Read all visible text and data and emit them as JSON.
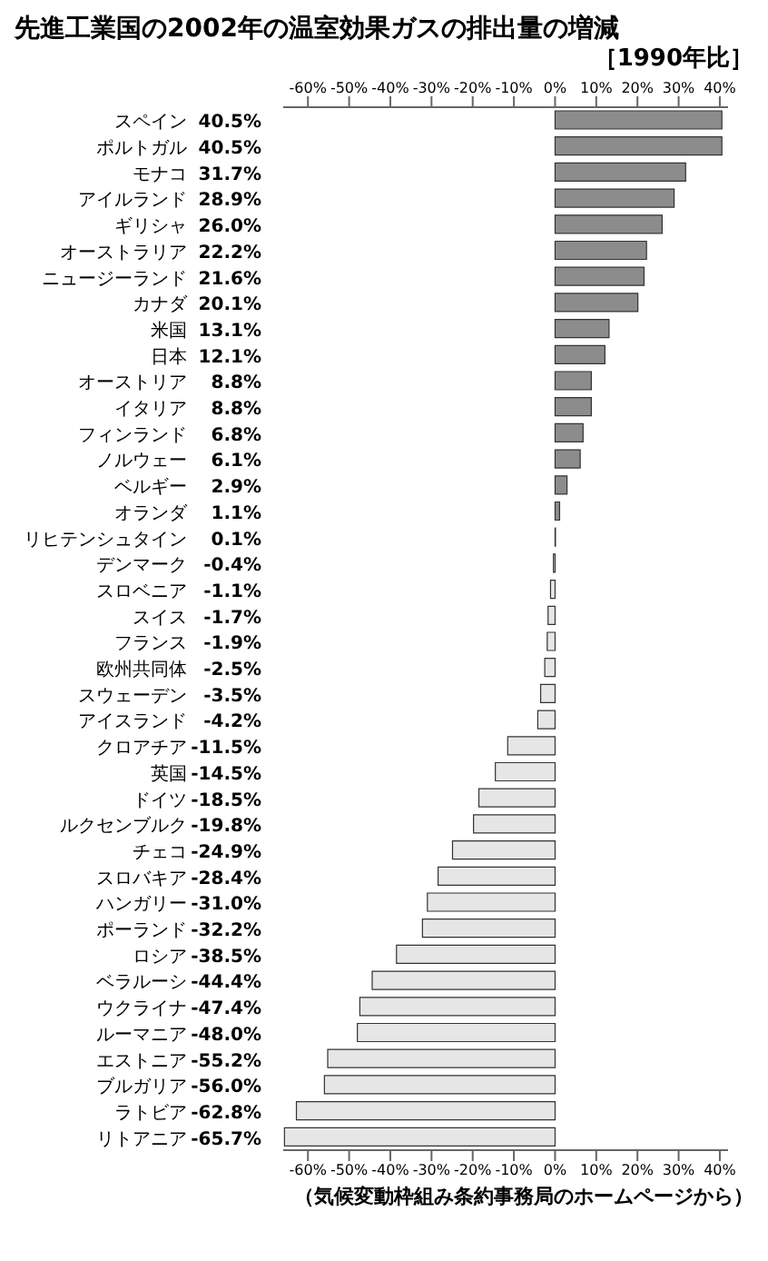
{
  "chart_data": {
    "type": "bar",
    "orientation": "horizontal",
    "title": "先進工業国の2002年の温室効果ガスの排出量の増減",
    "subtitle": "［1990年比］",
    "categories": [
      "スペイン",
      "ポルトガル",
      "モナコ",
      "アイルランド",
      "ギリシャ",
      "オーストラリア",
      "ニュージーランド",
      "カナダ",
      "米国",
      "日本",
      "オーストリア",
      "イタリア",
      "フィンランド",
      "ノルウェー",
      "ベルギー",
      "オランダ",
      "リヒテンシュタイン",
      "デンマーク",
      "スロベニア",
      "スイス",
      "フランス",
      "欧州共同体",
      "スウェーデン",
      "アイスランド",
      "クロアチア",
      "英国",
      "ドイツ",
      "ルクセンブルク",
      "チェコ",
      "スロバキア",
      "ハンガリー",
      "ポーランド",
      "ロシア",
      "ベラルーシ",
      "ウクライナ",
      "ルーマニア",
      "エストニア",
      "ブルガリア",
      "ラトビア",
      "リトアニア"
    ],
    "values": [
      40.5,
      40.5,
      31.7,
      28.9,
      26.0,
      22.2,
      21.6,
      20.1,
      13.1,
      12.1,
      8.8,
      8.8,
      6.8,
      6.1,
      2.9,
      1.1,
      0.1,
      -0.4,
      -1.1,
      -1.7,
      -1.9,
      -2.5,
      -3.5,
      -4.2,
      -11.5,
      -14.5,
      -18.5,
      -19.8,
      -24.9,
      -28.4,
      -31.0,
      -32.2,
      -38.5,
      -44.4,
      -47.4,
      -48.0,
      -55.2,
      -56.0,
      -62.8,
      -65.7
    ],
    "value_labels": [
      "40.5%",
      "40.5%",
      "31.7%",
      "28.9%",
      "26.0%",
      "22.2%",
      "21.6%",
      "20.1%",
      "13.1%",
      "12.1%",
      "8.8%",
      "8.8%",
      "6.8%",
      "6.1%",
      "2.9%",
      "1.1%",
      "0.1%",
      "-0.4%",
      "-1.1%",
      "-1.7%",
      "-1.9%",
      "-2.5%",
      "-3.5%",
      "-4.2%",
      "-11.5%",
      "-14.5%",
      "-18.5%",
      "-19.8%",
      "-24.9%",
      "-28.4%",
      "-31.0%",
      "-32.2%",
      "-38.5%",
      "-44.4%",
      "-47.4%",
      "-48.0%",
      "-55.2%",
      "-56.0%",
      "-62.8%",
      "-65.7%"
    ],
    "colors": [
      "#8c8c8c",
      "#8c8c8c",
      "#8c8c8c",
      "#8c8c8c",
      "#8c8c8c",
      "#8c8c8c",
      "#8c8c8c",
      "#8c8c8c",
      "#8c8c8c",
      "#8c8c8c",
      "#8c8c8c",
      "#8c8c8c",
      "#8c8c8c",
      "#8c8c8c",
      "#8c8c8c",
      "#8c8c8c",
      "#8c8c8c",
      "#e6e6e6",
      "#e6e6e6",
      "#e6e6e6",
      "#e6e6e6",
      "#e6e6e6",
      "#e6e6e6",
      "#e6e6e6",
      "#e6e6e6",
      "#e6e6e6",
      "#e6e6e6",
      "#e6e6e6",
      "#e6e6e6",
      "#e6e6e6",
      "#e6e6e6",
      "#e6e6e6",
      "#e6e6e6",
      "#e6e6e6",
      "#e6e6e6",
      "#e6e6e6",
      "#e6e6e6",
      "#e6e6e6",
      "#e6e6e6",
      "#e6e6e6"
    ],
    "xlim": [
      -66,
      42
    ],
    "xticks": [
      {
        "value": -60,
        "label": "-60%"
      },
      {
        "value": -50,
        "label": "-50%"
      },
      {
        "value": -40,
        "label": "-40%"
      },
      {
        "value": -30,
        "label": "-30%"
      },
      {
        "value": -20,
        "label": "-20%"
      },
      {
        "value": -10,
        "label": "-10%"
      },
      {
        "value": 0,
        "label": "0%"
      },
      {
        "value": 10,
        "label": "10%"
      },
      {
        "value": 20,
        "label": "20%"
      },
      {
        "value": 30,
        "label": "30%"
      },
      {
        "value": 40,
        "label": "40%"
      }
    ],
    "x2lim": [
      -66,
      42
    ],
    "x2ticks": [
      {
        "value": -60,
        "label": "-60%"
      },
      {
        "value": -50,
        "label": "-50%"
      },
      {
        "value": -40,
        "label": "-40%"
      },
      {
        "value": -30,
        "label": "-30%"
      },
      {
        "value": -20,
        "label": "-20%"
      },
      {
        "value": -10,
        "label": "-10%"
      },
      {
        "value": 0,
        "label": "0%"
      },
      {
        "value": 10,
        "label": "10%"
      },
      {
        "value": 20,
        "label": "20%"
      },
      {
        "value": 30,
        "label": "30%"
      },
      {
        "value": 40,
        "label": "40%"
      }
    ],
    "grid": false,
    "legend": false,
    "annotations": [
      "（気候変動枠組み条約事務局のホームページから）"
    ]
  }
}
